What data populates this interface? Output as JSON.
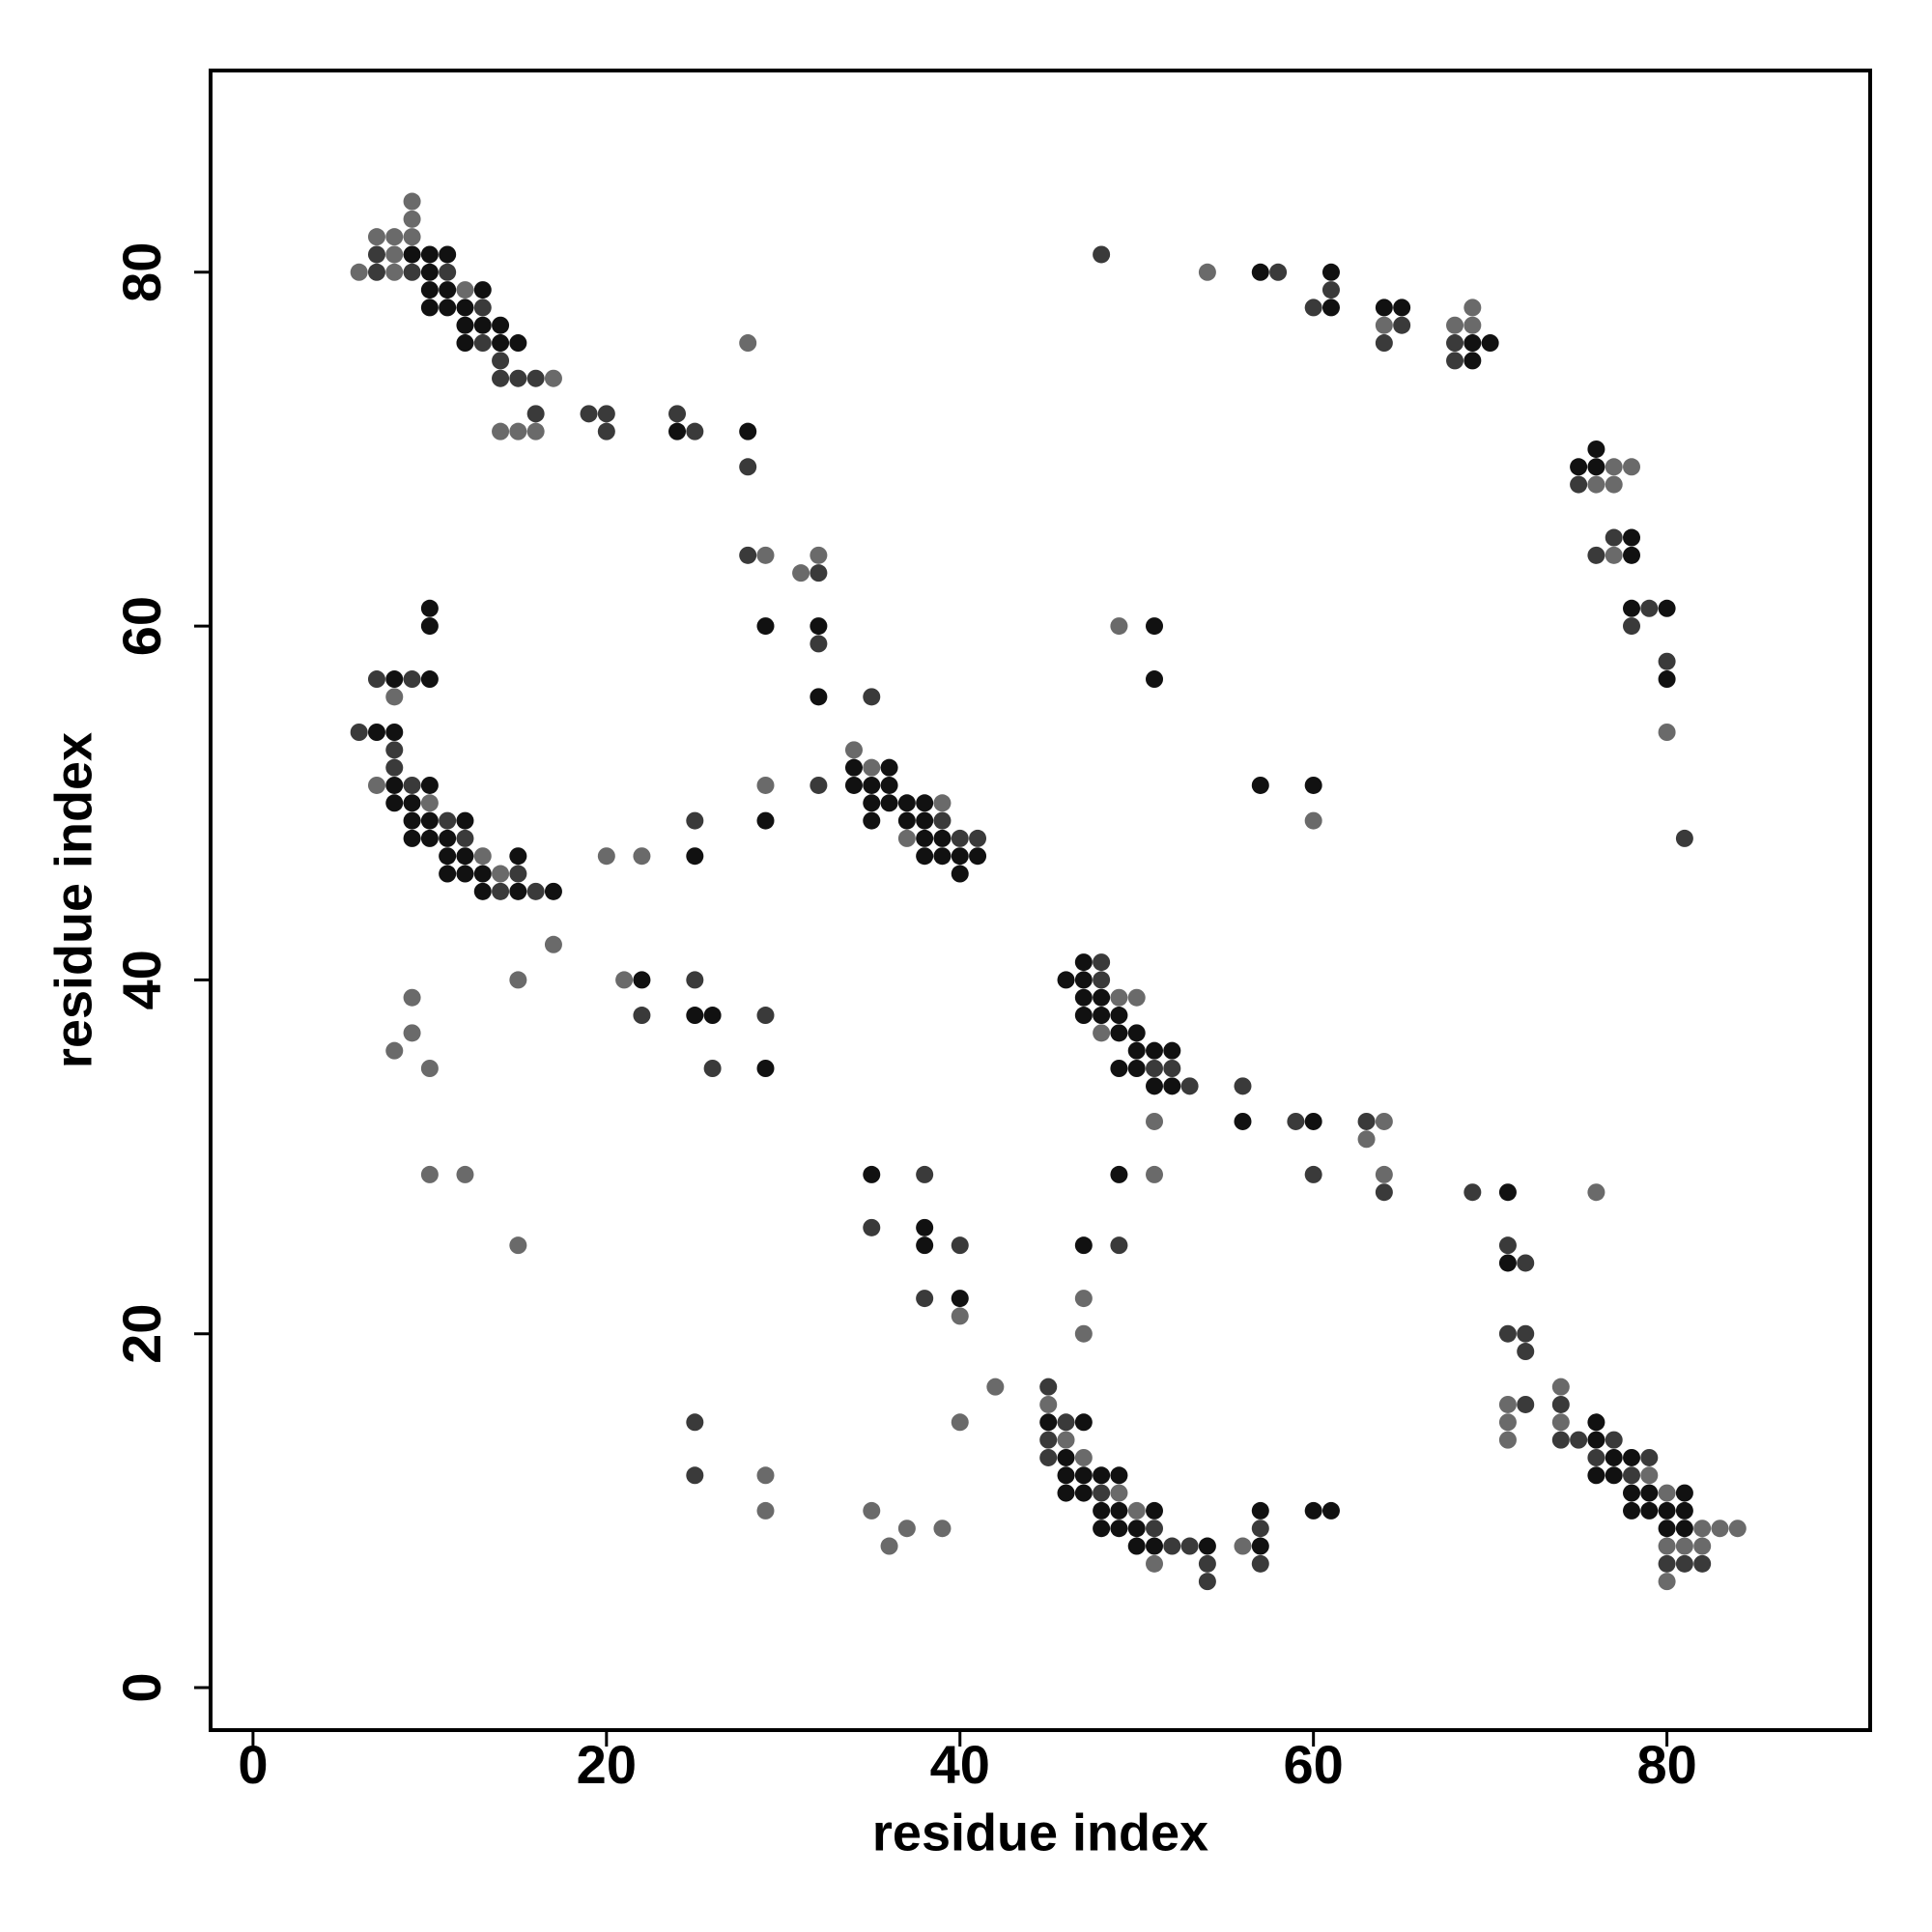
{
  "chart_data": {
    "type": "scatter",
    "xlabel": "residue index",
    "ylabel": "residue index",
    "xlim": [
      -2.4,
      91.5
    ],
    "ylim": [
      -2.4,
      91.4
    ],
    "xticks": [
      0,
      20,
      40,
      60,
      80
    ],
    "yticks": [
      0,
      20,
      40,
      60,
      80
    ],
    "series": [
      {
        "color": "#111111",
        "x": [
          9,
          10,
          10,
          10,
          10,
          11,
          11,
          11,
          12,
          12,
          12,
          13,
          13,
          14,
          14,
          15,
          24,
          28,
          29,
          32,
          32,
          10,
          10,
          8,
          10,
          7,
          8,
          8,
          10,
          8,
          9,
          9,
          10,
          12,
          9,
          10,
          11,
          11,
          12,
          15,
          11,
          12,
          13,
          13,
          15,
          17,
          25,
          22,
          25,
          26,
          29,
          29,
          34,
          34,
          35,
          35,
          35,
          36,
          36,
          36,
          37,
          37,
          38,
          38,
          38,
          38,
          39,
          39,
          40,
          40,
          41,
          46,
          47,
          47,
          47,
          47,
          48,
          48,
          49,
          49,
          49,
          50,
          50,
          50,
          51,
          51,
          52,
          52,
          49,
          56,
          60,
          71,
          57,
          61,
          61,
          64,
          65,
          69,
          70,
          69,
          75,
          76,
          76,
          78,
          78,
          78,
          80,
          80,
          51,
          51,
          57,
          60,
          35,
          38,
          38,
          40,
          47,
          45,
          46,
          46,
          46,
          47,
          47,
          47,
          48,
          48,
          48,
          49,
          49,
          49,
          50,
          50,
          51,
          51,
          54,
          57,
          57,
          60,
          61,
          71,
          76,
          76,
          76,
          77,
          77,
          78,
          78,
          78,
          79,
          79,
          80,
          80,
          81,
          81,
          81
        ],
        "y": [
          81,
          81,
          80,
          79,
          78,
          81,
          79,
          78,
          78,
          77,
          76,
          79,
          77,
          77,
          76,
          76,
          71,
          71,
          60,
          60,
          56,
          61,
          60,
          57,
          57,
          54,
          54,
          51,
          51,
          50,
          50,
          49,
          49,
          49,
          48,
          48,
          48,
          47,
          47,
          47,
          46,
          46,
          46,
          45,
          45,
          45,
          47,
          40,
          38,
          38,
          49,
          35,
          52,
          51,
          51,
          50,
          49,
          52,
          51,
          50,
          50,
          49,
          50,
          49,
          48,
          47,
          48,
          47,
          47,
          46,
          47,
          40,
          41,
          40,
          39,
          38,
          39,
          38,
          38,
          37,
          35,
          37,
          36,
          35,
          36,
          34,
          36,
          34,
          29,
          32,
          32,
          28,
          80,
          80,
          78,
          78,
          78,
          76,
          76,
          75,
          69,
          70,
          69,
          65,
          64,
          61,
          61,
          57,
          60,
          57,
          51,
          51,
          29,
          26,
          25,
          22,
          25,
          15,
          13,
          12,
          11,
          15,
          12,
          11,
          12,
          10,
          9,
          12,
          10,
          9,
          9,
          8,
          10,
          8,
          8,
          10,
          8,
          10,
          10,
          24,
          15,
          14,
          12,
          13,
          12,
          13,
          11,
          10,
          11,
          10,
          10,
          9,
          11,
          10,
          9
        ]
      },
      {
        "color": "#3a3a3a",
        "x": [
          7,
          7,
          9,
          11,
          13,
          13,
          14,
          14,
          15,
          16,
          16,
          19,
          20,
          20,
          24,
          25,
          28,
          28,
          32,
          32,
          35,
          7,
          9,
          6,
          8,
          8,
          9,
          11,
          12,
          15,
          14,
          16,
          25,
          22,
          25,
          26,
          29,
          32,
          39,
          40,
          41,
          48,
          48,
          51,
          52,
          53,
          56,
          59,
          60,
          63,
          64,
          69,
          48,
          58,
          61,
          60,
          65,
          64,
          68,
          68,
          75,
          76,
          77,
          79,
          78,
          80,
          81,
          38,
          35,
          40,
          38,
          49,
          25,
          25,
          45,
          45,
          45,
          46,
          48,
          51,
          52,
          53,
          54,
          54,
          57,
          57,
          71,
          72,
          71,
          72,
          72,
          72,
          74,
          74,
          75,
          76,
          77,
          78,
          79,
          80,
          81,
          82
        ],
        "y": [
          81,
          80,
          80,
          80,
          78,
          76,
          75,
          74,
          74,
          74,
          72,
          72,
          72,
          71,
          72,
          71,
          69,
          64,
          63,
          59,
          56,
          57,
          57,
          54,
          53,
          52,
          51,
          49,
          48,
          46,
          45,
          45,
          49,
          38,
          40,
          35,
          38,
          51,
          49,
          48,
          48,
          41,
          40,
          35,
          35,
          34,
          34,
          32,
          29,
          32,
          28,
          28,
          81,
          80,
          79,
          78,
          77,
          76,
          76,
          75,
          68,
          64,
          65,
          61,
          60,
          58,
          48,
          29,
          26,
          25,
          22,
          25,
          15,
          12,
          17,
          14,
          13,
          15,
          11,
          9,
          8,
          8,
          7,
          6,
          9,
          7,
          25,
          24,
          20,
          20,
          19,
          16,
          16,
          14,
          14,
          13,
          14,
          12,
          13,
          7,
          7,
          7
        ]
      },
      {
        "color": "#6a6a6a",
        "x": [
          6,
          7,
          8,
          8,
          8,
          9,
          9,
          9,
          12,
          14,
          15,
          16,
          17,
          28,
          29,
          31,
          32,
          8,
          7,
          10,
          13,
          14,
          17,
          15,
          9,
          9,
          8,
          10,
          10,
          12,
          15,
          20,
          22,
          21,
          29,
          34,
          35,
          37,
          39,
          48,
          49,
          50,
          51,
          51,
          63,
          64,
          64,
          76,
          54,
          64,
          68,
          69,
          69,
          77,
          78,
          76,
          77,
          77,
          80,
          49,
          60,
          40,
          47,
          47,
          42,
          40,
          29,
          29,
          35,
          36,
          37,
          39,
          45,
          46,
          47,
          49,
          50,
          51,
          56,
          71,
          71,
          71,
          74,
          74,
          79,
          80,
          80,
          80,
          81,
          82,
          82,
          83,
          84
        ],
        "y": [
          80,
          82,
          82,
          81,
          80,
          84,
          83,
          82,
          79,
          71,
          71,
          71,
          74,
          76,
          64,
          63,
          64,
          56,
          51,
          50,
          47,
          46,
          42,
          40,
          39,
          37,
          36,
          35,
          29,
          29,
          25,
          47,
          47,
          40,
          51,
          53,
          52,
          48,
          50,
          37,
          39,
          39,
          32,
          29,
          31,
          32,
          29,
          28,
          80,
          77,
          77,
          78,
          77,
          69,
          69,
          68,
          68,
          64,
          54,
          60,
          49,
          21,
          22,
          20,
          17,
          15,
          12,
          10,
          10,
          8,
          9,
          9,
          16,
          14,
          13,
          11,
          10,
          7,
          8,
          16,
          15,
          14,
          17,
          15,
          12,
          11,
          8,
          6,
          8,
          9,
          8,
          9,
          9
        ]
      }
    ]
  }
}
